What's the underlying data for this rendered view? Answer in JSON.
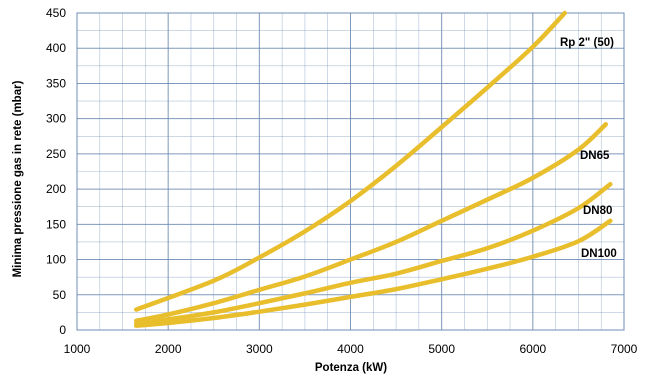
{
  "chart_data": {
    "type": "line",
    "title": "",
    "xlabel": "Potenza (kW)",
    "ylabel": "Minima pressione gas in rete (mbar)",
    "xlim": [
      1000,
      7000
    ],
    "ylim": [
      0,
      450
    ],
    "x_ticks": [
      "1000",
      "2000",
      "3000",
      "4000",
      "5000",
      "6000",
      "7000"
    ],
    "y_ticks": [
      "0",
      "50",
      "100",
      "150",
      "200",
      "250",
      "300",
      "350",
      "400",
      "450"
    ],
    "x_minor_step": 250,
    "y_minor_step": 25,
    "grid": true,
    "line_color": "#e8be2c",
    "grid_color": "#6f8db5",
    "series": [
      {
        "name": "Rp 2\" (50)",
        "x": [
          1650,
          2500,
          3000,
          3500,
          4000,
          4500,
          5000,
          5500,
          6000,
          6350
        ],
        "y": [
          29,
          70,
          103,
          140,
          183,
          233,
          288,
          344,
          402,
          450
        ]
      },
      {
        "name": "DN65",
        "x": [
          1650,
          2000,
          2500,
          3000,
          3500,
          4000,
          4500,
          5000,
          5500,
          6000,
          6500,
          6800
        ],
        "y": [
          13,
          22,
          38,
          57,
          76,
          100,
          125,
          155,
          185,
          216,
          256,
          292
        ]
      },
      {
        "name": "DN80",
        "x": [
          1650,
          2000,
          2500,
          3000,
          3500,
          4000,
          4500,
          5000,
          5500,
          6000,
          6500,
          6850
        ],
        "y": [
          9,
          15,
          25,
          38,
          52,
          67,
          80,
          98,
          116,
          141,
          173,
          207
        ]
      },
      {
        "name": "DN100",
        "x": [
          1650,
          2000,
          2500,
          3000,
          3500,
          4000,
          4500,
          5000,
          5500,
          6000,
          6500,
          6850
        ],
        "y": [
          6,
          10,
          17,
          26,
          36,
          47,
          58,
          72,
          87,
          104,
          126,
          155
        ]
      }
    ]
  }
}
